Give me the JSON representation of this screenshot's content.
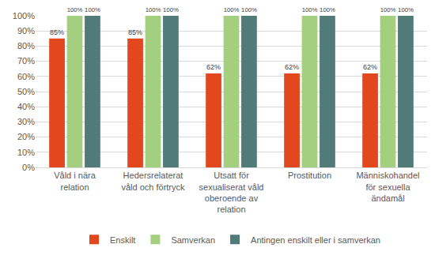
{
  "chart_data": {
    "type": "bar",
    "categories": [
      "Våld i nära\nrelation",
      "Hedersrelaterat\nvåld och förtryck",
      "Utsatt för\nsexualiserat våld\noberoende av\nrelation",
      "Prostitution",
      "Människohandel\nför sexuella\nändamål"
    ],
    "series": [
      {
        "name": "Enskilt",
        "color": "#E2471E",
        "values": [
          85,
          85,
          62,
          62,
          62
        ],
        "value_labels": [
          "85%",
          "85%",
          "62%",
          "62%",
          "62%"
        ]
      },
      {
        "name": "Samverkan",
        "color": "#A4CF7E",
        "values": [
          100,
          100,
          100,
          100,
          100
        ],
        "value_labels": [
          "100%",
          "100%",
          "100%",
          "100%",
          "100%"
        ]
      },
      {
        "name": "Antingen enskilt eller i samverkan",
        "color": "#507B78",
        "values": [
          100,
          100,
          100,
          100,
          100
        ],
        "value_labels": [
          "100%",
          "100%",
          "100%",
          "100%",
          "100%"
        ]
      }
    ],
    "ylim": [
      0,
      100
    ],
    "yticks": [
      {
        "value": 0,
        "label": "0%"
      },
      {
        "value": 10,
        "label": "10%"
      },
      {
        "value": 20,
        "label": "20%"
      },
      {
        "value": 30,
        "label": "30%"
      },
      {
        "value": 40,
        "label": "40%"
      },
      {
        "value": 50,
        "label": "50%"
      },
      {
        "value": 60,
        "label": "60%"
      },
      {
        "value": 70,
        "label": "70%"
      },
      {
        "value": 80,
        "label": "80%"
      },
      {
        "value": 90,
        "label": "90%"
      },
      {
        "value": 100,
        "label": "100%"
      }
    ],
    "grid": true,
    "legend": "bottom",
    "data_labels": true
  }
}
